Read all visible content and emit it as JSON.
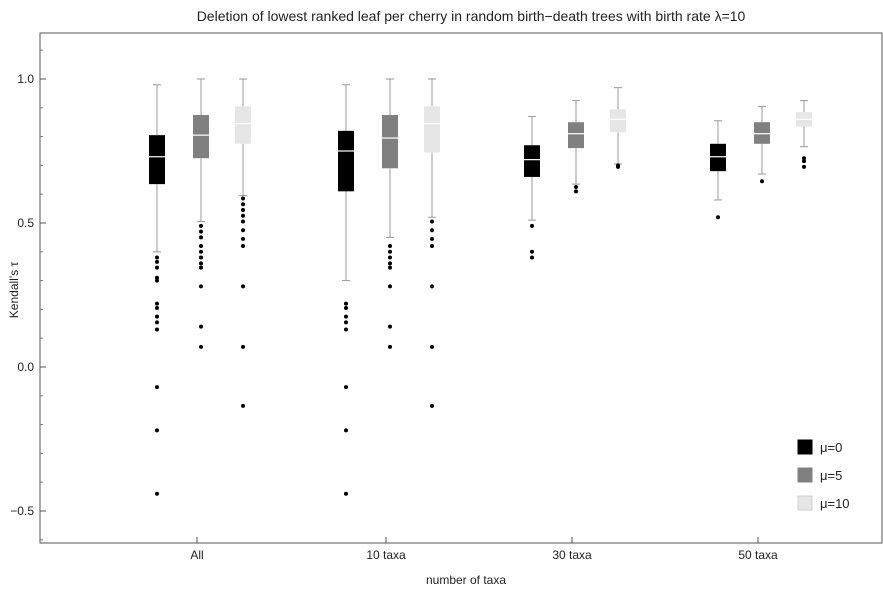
{
  "chart_data": {
    "type": "box",
    "title": "Deletion of lowest ranked leaf per cherry in random birth−death trees with birth rate λ=10",
    "xlabel": "number of taxa",
    "ylabel": "Kendall's τ",
    "ylim": [
      -0.6,
      1.16
    ],
    "yticks": [
      1.0,
      0.5,
      0.0,
      -0.5
    ],
    "ytick_labels": [
      "1.0",
      "0.5",
      "0.0",
      "−0.5"
    ],
    "categories": [
      "All",
      "10 taxa",
      "30 taxa",
      "50 taxa"
    ],
    "legend_position": "bottom-right",
    "series": [
      {
        "name": "μ=0",
        "color": "#000000",
        "median_color": "#ffffff",
        "boxes": [
          {
            "whisker_low": 0.4,
            "q1": 0.635,
            "median": 0.73,
            "q3": 0.805,
            "whisker_high": 0.98,
            "outliers": [
              0.38,
              0.365,
              0.345,
              0.31,
              0.3,
              0.22,
              0.205,
              0.175,
              0.155,
              0.13,
              -0.07,
              -0.22,
              -0.44
            ]
          },
          {
            "whisker_low": 0.3,
            "q1": 0.61,
            "median": 0.75,
            "q3": 0.82,
            "whisker_high": 0.98,
            "outliers": [
              0.22,
              0.205,
              0.175,
              0.155,
              0.13,
              -0.07,
              -0.22,
              -0.44
            ]
          },
          {
            "whisker_low": 0.51,
            "q1": 0.66,
            "median": 0.72,
            "q3": 0.77,
            "whisker_high": 0.87,
            "outliers": [
              0.49,
              0.4,
              0.38
            ]
          },
          {
            "whisker_low": 0.58,
            "q1": 0.68,
            "median": 0.73,
            "q3": 0.775,
            "whisker_high": 0.855,
            "outliers": [
              0.52
            ]
          }
        ]
      },
      {
        "name": "μ=5",
        "color": "#808080",
        "median_color": "#ffffff",
        "boxes": [
          {
            "whisker_low": 0.505,
            "q1": 0.725,
            "median": 0.805,
            "q3": 0.875,
            "whisker_high": 1.0,
            "outliers": [
              0.49,
              0.47,
              0.45,
              0.42,
              0.4,
              0.38,
              0.36,
              0.345,
              0.28,
              0.14,
              0.07
            ]
          },
          {
            "whisker_low": 0.45,
            "q1": 0.69,
            "median": 0.795,
            "q3": 0.875,
            "whisker_high": 1.0,
            "outliers": [
              0.42,
              0.4,
              0.38,
              0.36,
              0.345,
              0.28,
              0.14,
              0.07
            ]
          },
          {
            "whisker_low": 0.635,
            "q1": 0.76,
            "median": 0.81,
            "q3": 0.85,
            "whisker_high": 0.925,
            "outliers": [
              0.625,
              0.61
            ]
          },
          {
            "whisker_low": 0.67,
            "q1": 0.775,
            "median": 0.81,
            "q3": 0.85,
            "whisker_high": 0.905,
            "outliers": [
              0.645
            ]
          }
        ]
      },
      {
        "name": "μ=10",
        "color": "#e6e6e6",
        "median_color": "#ffffff",
        "boxes": [
          {
            "whisker_low": 0.595,
            "q1": 0.775,
            "median": 0.845,
            "q3": 0.905,
            "whisker_high": 1.0,
            "outliers": [
              0.585,
              0.565,
              0.545,
              0.525,
              0.505,
              0.475,
              0.445,
              0.42,
              0.28,
              0.07,
              -0.135
            ]
          },
          {
            "whisker_low": 0.52,
            "q1": 0.745,
            "median": 0.845,
            "q3": 0.905,
            "whisker_high": 1.0,
            "outliers": [
              0.505,
              0.475,
              0.445,
              0.42,
              0.28,
              0.07,
              -0.135
            ]
          },
          {
            "whisker_low": 0.705,
            "q1": 0.815,
            "median": 0.86,
            "q3": 0.895,
            "whisker_high": 0.97,
            "outliers": [
              0.7,
              0.695
            ]
          },
          {
            "whisker_low": 0.765,
            "q1": 0.835,
            "median": 0.86,
            "q3": 0.885,
            "whisker_high": 0.925,
            "outliers": [
              0.725,
              0.715,
              0.695
            ]
          }
        ]
      }
    ]
  }
}
